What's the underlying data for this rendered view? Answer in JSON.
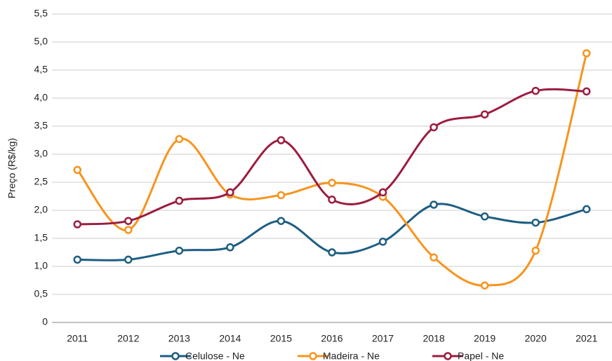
{
  "chart_data": {
    "type": "line",
    "y_label": "Preço (R$/kg)",
    "categories": [
      "2011",
      "2012",
      "2013",
      "2014",
      "2015",
      "2016",
      "2017",
      "2018",
      "2019",
      "2020",
      "2021"
    ],
    "series": [
      {
        "name": "Celulose - Ne",
        "color": "#1d5d82",
        "values": [
          1.12,
          1.12,
          1.28,
          1.34,
          1.81,
          1.25,
          1.44,
          2.1,
          1.89,
          1.78,
          2.02
        ]
      },
      {
        "name": "Madeira - Ne",
        "color": "#f7941d",
        "values": [
          2.72,
          1.65,
          3.27,
          2.28,
          2.27,
          2.49,
          2.24,
          1.16,
          0.66,
          1.28,
          4.8
        ]
      },
      {
        "name": "Papel - Ne",
        "color": "#9b1d3f",
        "values": [
          1.75,
          1.81,
          2.17,
          2.32,
          3.25,
          2.19,
          2.32,
          3.48,
          3.71,
          4.13,
          4.12
        ]
      }
    ],
    "ylim": [
      0,
      5.5
    ],
    "yticks": [
      0,
      {
        "value": 0.5,
        "label": "0,5"
      },
      {
        "value": 1,
        "label": "1,0"
      },
      {
        "value": 1.5,
        "label": "1,5"
      },
      {
        "value": 2,
        "label": "2,0"
      },
      {
        "value": 2.5,
        "label": "2,5"
      },
      {
        "value": 3,
        "label": "3,0"
      },
      {
        "value": 3.5,
        "label": "3,5"
      },
      {
        "value": 4,
        "label": "4,0"
      },
      {
        "value": 4.5,
        "label": "4,5"
      },
      {
        "value": 5,
        "label": "5,0"
      },
      {
        "value": 5.5,
        "label": "5,5"
      }
    ],
    "grid": true,
    "smooth": true,
    "legend": "bottom"
  }
}
